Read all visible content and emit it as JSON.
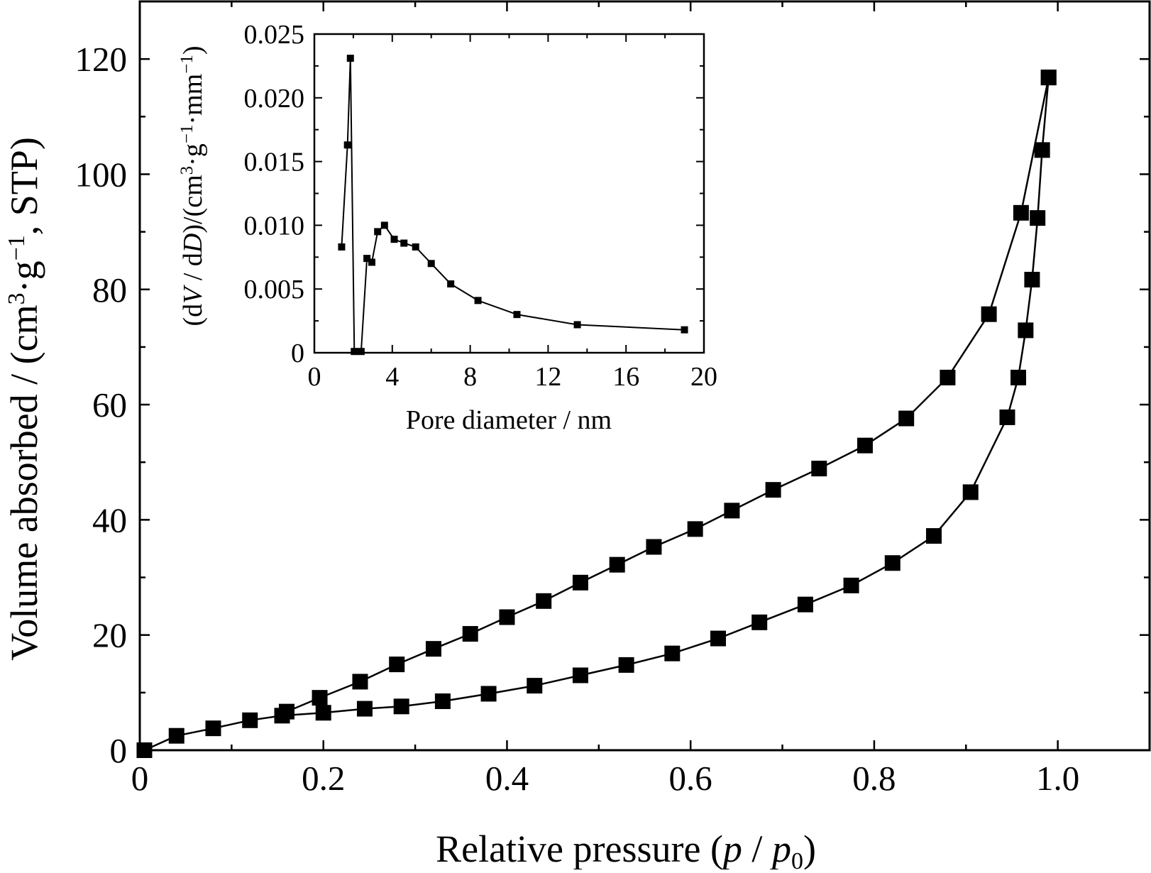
{
  "chart_data": [
    {
      "type": "line",
      "xlabel": {
        "pre": "Relative pressure (",
        "p": "p",
        "slash": " / ",
        "p0": "p",
        "p0_sub": "0",
        "post": ")"
      },
      "ylabel": {
        "pre": "Volume absorbed / (cm",
        "sup3": "3",
        "mid": "·g",
        "supm1": "−1",
        "post": ", STP)"
      },
      "xlim": [
        0,
        1.1
      ],
      "ylim": [
        0,
        130
      ],
      "x_ticks": [
        0,
        0.2,
        0.4,
        0.6,
        0.8,
        1.0
      ],
      "x_tick_labels": [
        "0",
        "0.2",
        "0.4",
        "0.6",
        "0.8",
        "1.0"
      ],
      "y_ticks": [
        0,
        20,
        40,
        60,
        80,
        100,
        120
      ],
      "y_tick_labels": [
        "0",
        "20",
        "40",
        "60",
        "80",
        "100",
        "120"
      ],
      "marker": "square",
      "color": "#000000",
      "series": [
        {
          "x": [
            0.005,
            0.04,
            0.08,
            0.12,
            0.155,
            0.2,
            0.245,
            0.285,
            0.33,
            0.38,
            0.43,
            0.48,
            0.53,
            0.58,
            0.63,
            0.675,
            0.725,
            0.775,
            0.82,
            0.865,
            0.905,
            0.945,
            0.957,
            0.965,
            0.972,
            0.978,
            0.983,
            0.99
          ],
          "y": [
            0,
            2.5,
            3.8,
            5.2,
            6,
            6.5,
            7.2,
            7.6,
            8.5,
            9.8,
            11.2,
            13,
            14.8,
            16.8,
            19.4,
            22.2,
            25.3,
            28.6,
            32.5,
            37.2,
            44.8,
            57.8,
            64.7,
            72.9,
            81.7,
            92.4,
            104.2,
            116.8
          ]
        },
        {
          "x": [
            0.99,
            0.96,
            0.925,
            0.88,
            0.835,
            0.79,
            0.74,
            0.69,
            0.645,
            0.605,
            0.56,
            0.52,
            0.48,
            0.44,
            0.4,
            0.36,
            0.32,
            0.28,
            0.24,
            0.196,
            0.16
          ],
          "y": [
            116.8,
            93.3,
            75.7,
            64.7,
            57.6,
            52.9,
            48.9,
            45.2,
            41.6,
            38.4,
            35.3,
            32.2,
            29.1,
            25.9,
            23.1,
            20.2,
            17.6,
            14.9,
            11.9,
            9.1,
            6.7
          ]
        }
      ]
    },
    {
      "type": "line",
      "xlabel": "Pore diameter / nm",
      "ylabel": {
        "pre": "(d",
        "V": "V",
        "mid1": " / d",
        "D": "D",
        "mid2": ")/(cm",
        "sup3": "3",
        "mid3": "·g",
        "supm1": "−1",
        "mid4": "·mm",
        "post": ")"
      },
      "xlim": [
        0,
        20
      ],
      "ylim": [
        0,
        0.025
      ],
      "x_ticks": [
        0,
        4,
        8,
        12,
        16,
        20
      ],
      "x_tick_labels": [
        "0",
        "4",
        "8",
        "12",
        "16",
        "20"
      ],
      "y_ticks": [
        0,
        0.005,
        0.01,
        0.015,
        0.02,
        0.025
      ],
      "y_tick_labels": [
        "0",
        "0.005",
        "0.010",
        "0.015",
        "0.020",
        "0.025"
      ],
      "marker": "square",
      "color": "#000000",
      "series": [
        {
          "x": [
            1.4,
            1.7,
            1.85,
            2.05,
            2.4,
            2.7,
            2.95,
            3.25,
            3.6,
            4.1,
            4.6,
            5.2,
            6.0,
            7.0,
            8.4,
            10.4,
            13.5,
            19.0
          ],
          "y": [
            0.0083,
            0.0163,
            0.0231,
            0.0001,
            0.0001,
            0.0074,
            0.0071,
            0.0095,
            0.01,
            0.0089,
            0.0086,
            0.0083,
            0.007,
            0.0054,
            0.0041,
            0.003,
            0.0022,
            0.0018
          ]
        }
      ]
    }
  ]
}
